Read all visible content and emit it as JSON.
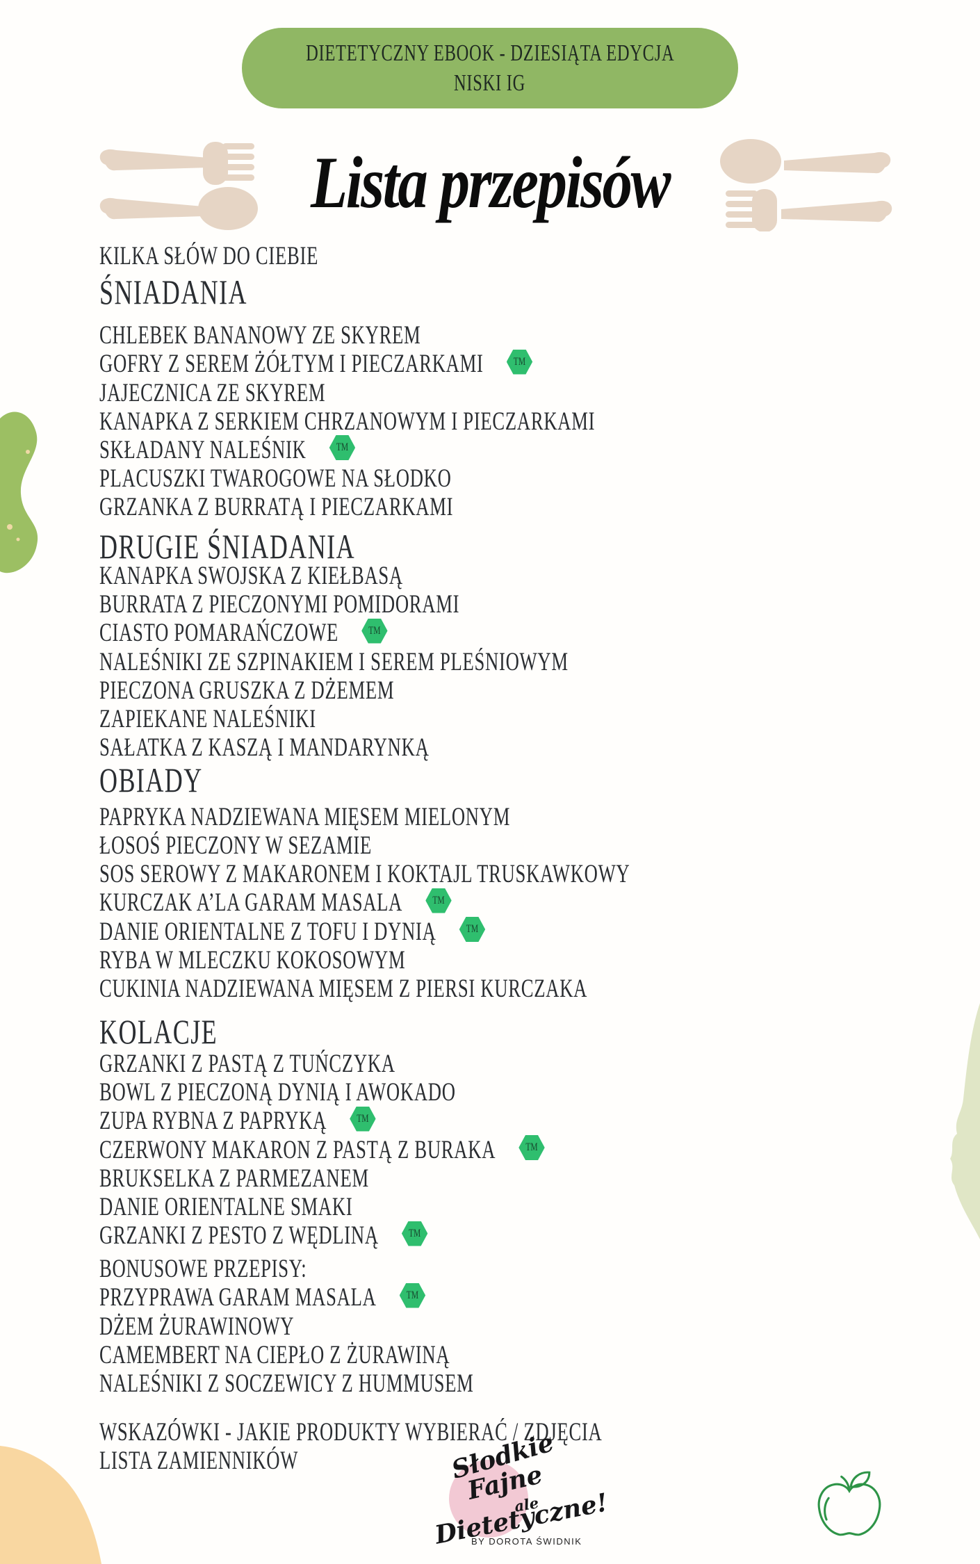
{
  "badge": {
    "line1": "DIETETYCZNY EBOOK - DZIESIĄTA EDYCJA",
    "line2": "NISKI IG"
  },
  "title": "Lista przepisów",
  "intro_link": "KILKA SŁÓW DO CIEBIE",
  "tm_label": "TM",
  "sections": [
    {
      "heading": "ŚNIADANIA",
      "items": [
        {
          "label": "CHLEBEK BANANOWY ZE SKYREM",
          "tm": false
        },
        {
          "label": "GOFRY Z SEREM ŻÓŁTYM I PIECZARKAMI",
          "tm": true
        },
        {
          "label": "JAJECZNICA ZE SKYREM",
          "tm": false
        },
        {
          "label": "KANAPKA Z SERKIEM CHRZANOWYM I PIECZARKAMI",
          "tm": false
        },
        {
          "label": "SKŁADANY NALEŚNIK",
          "tm": true
        },
        {
          "label": "PLACUSZKI TWAROGOWE NA SŁODKO",
          "tm": false
        },
        {
          "label": "GRZANKA Z BURRATĄ I PIECZARKAMI",
          "tm": false
        }
      ]
    },
    {
      "heading": "DRUGIE ŚNIADANIA",
      "items": [
        {
          "label": "KANAPKA SWOJSKA Z KIEŁBASĄ",
          "tm": false
        },
        {
          "label": "BURRATA Z PIECZONYMI POMIDORAMI",
          "tm": false
        },
        {
          "label": "CIASTO POMARAŃCZOWE",
          "tm": true
        },
        {
          "label": "NALEŚNIKI ZE SZPINAKIEM I SEREM PLEŚNIOWYM",
          "tm": false
        },
        {
          "label": "PIECZONA GRUSZKA Z DŻEMEM",
          "tm": false
        },
        {
          "label": "ZAPIEKANE NALEŚNIKI",
          "tm": false
        },
        {
          "label": "SAŁATKA Z KASZĄ I MANDARYNKĄ",
          "tm": false
        }
      ]
    },
    {
      "heading": "OBIADY",
      "items": [
        {
          "label": "PAPRYKA NADZIEWANA MIĘSEM MIELONYM",
          "tm": false
        },
        {
          "label": "ŁOSOŚ PIECZONY W SEZAMIE",
          "tm": false
        },
        {
          "label": "SOS SEROWY Z MAKARONEM I KOKTAJL TRUSKAWKOWY",
          "tm": false
        },
        {
          "label": "KURCZAK A’LA GARAM MASALA",
          "tm": true
        },
        {
          "label": "DANIE ORIENTALNE Z TOFU I DYNIĄ",
          "tm": true
        },
        {
          "label": "RYBA W MLECZKU KOKOSOWYM",
          "tm": false
        },
        {
          "label": "CUKINIA NADZIEWANA MIĘSEM Z PIERSI KURCZAKA",
          "tm": false
        }
      ]
    },
    {
      "heading": "KOLACJE",
      "items": [
        {
          "label": "GRZANKI Z PASTĄ Z TUŃCZYKA",
          "tm": false
        },
        {
          "label": "BOWL Z PIECZONĄ DYNIĄ I AWOKADO",
          "tm": false
        },
        {
          "label": "ZUPA RYBNA Z PAPRYKĄ",
          "tm": true
        },
        {
          "label": "CZERWONY MAKARON Z PASTĄ Z BURAKA",
          "tm": true
        },
        {
          "label": "BRUKSELKA Z PARMEZANEM",
          "tm": false
        },
        {
          "label": "DANIE ORIENTALNE SMAKI",
          "tm": false
        },
        {
          "label": "GRZANKI Z PESTO Z WĘDLINĄ",
          "tm": true
        }
      ]
    }
  ],
  "bonus": {
    "heading": "BONUSOWE PRZEPISY:",
    "items": [
      {
        "label": "PRZYPRAWA GARAM MASALA",
        "tm": true
      },
      {
        "label": "DŻEM ŻURAWINOWY",
        "tm": false
      },
      {
        "label": "CAMEMBERT NA CIEPŁO Z ŻURAWINĄ",
        "tm": false
      },
      {
        "label": "NALEŚNIKI Z SOCZEWICY Z HUMMUSEM",
        "tm": false
      }
    ]
  },
  "footer_links": [
    "WSKAZÓWKI - JAKIE PRODUKTY WYBIERAĆ / ZDJĘCIA",
    "LISTA ZAMIENNIKÓW"
  ],
  "logo": {
    "word1": "Słodkie",
    "word2": "Fajne",
    "word3": "ale",
    "word4": "Dietetyczne!",
    "byline": "BY DOROTA ŚWIDNIK"
  },
  "colors": {
    "pill-green": "#90B764",
    "tm-green": "#2FBE6E",
    "beige": "#E6D5C5",
    "blob-green": "#9CBF63",
    "blob-pale": "#E0E6C6",
    "blob-peach": "#F9D7A1",
    "logo-pink": "#F2C9D4",
    "apple-green": "#2E9447",
    "text-dark": "#2A2D31"
  }
}
